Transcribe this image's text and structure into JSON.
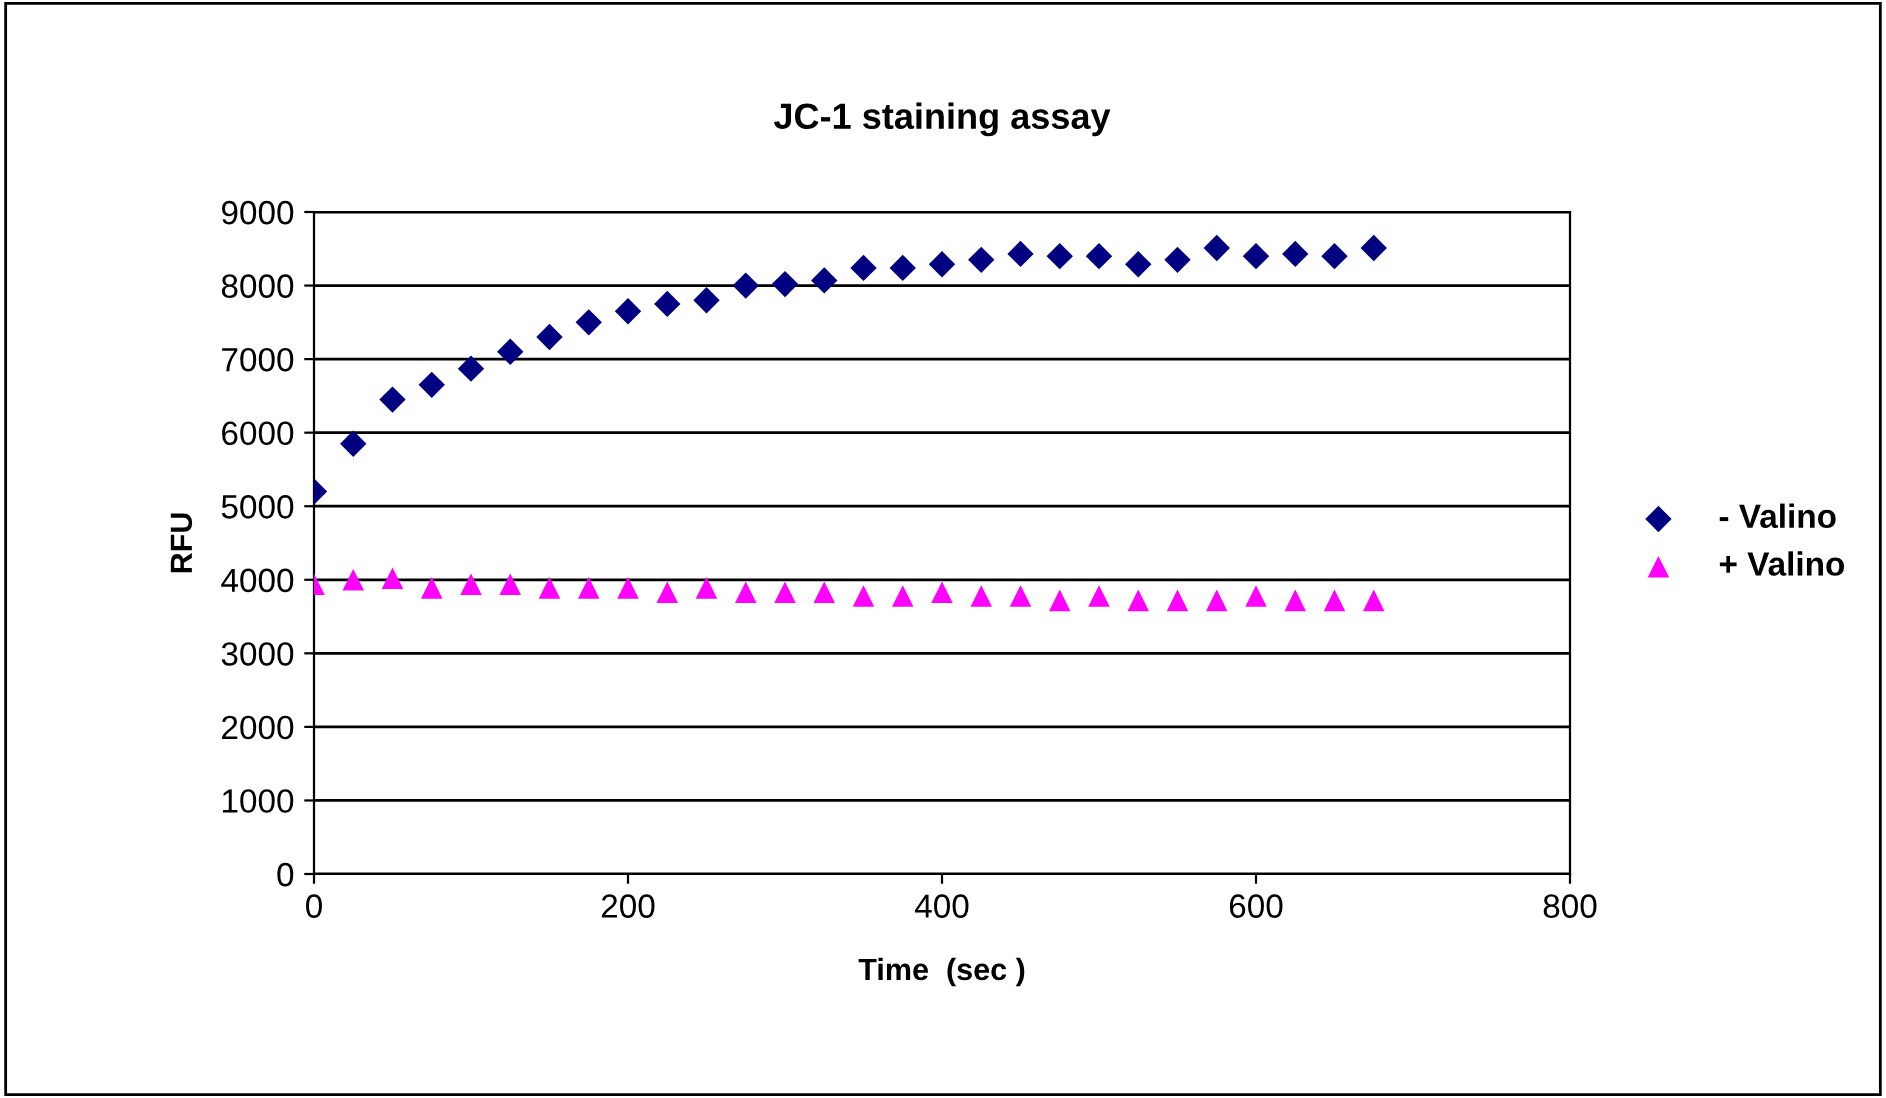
{
  "chart_data": {
    "type": "scatter",
    "title": "JC-1 staining assay",
    "xlabel": "Time  (sec )",
    "ylabel": "RFU",
    "x": [
      0,
      25,
      50,
      75,
      100,
      125,
      150,
      175,
      200,
      225,
      250,
      275,
      300,
      325,
      350,
      375,
      400,
      425,
      450,
      475,
      500,
      525,
      550,
      575,
      600,
      625,
      650,
      675
    ],
    "series": [
      {
        "name": "- Valino",
        "color": "#000080",
        "marker": "diamond",
        "values": [
          5200,
          5850,
          6450,
          6650,
          6870,
          7100,
          7300,
          7500,
          7650,
          7750,
          7800,
          8000,
          8020,
          8070,
          8240,
          8240,
          8290,
          8350,
          8430,
          8400,
          8400,
          8290,
          8350,
          8510,
          8400,
          8430,
          8400,
          8510
        ]
      },
      {
        "name": "+ Valino",
        "color": "#ff00ff",
        "marker": "triangle",
        "values": [
          3940,
          4000,
          4020,
          3890,
          3940,
          3940,
          3890,
          3890,
          3890,
          3830,
          3890,
          3830,
          3830,
          3830,
          3780,
          3780,
          3830,
          3780,
          3780,
          3720,
          3780,
          3720,
          3720,
          3720,
          3780,
          3720,
          3720,
          3720
        ]
      }
    ],
    "xlim": [
      0,
      800
    ],
    "xticks": [
      0,
      200,
      400,
      600,
      800
    ],
    "ylim": [
      0,
      9000
    ],
    "yticks": [
      0,
      1000,
      2000,
      3000,
      4000,
      5000,
      6000,
      7000,
      8000,
      9000
    ],
    "grid": "y",
    "legend": "right"
  }
}
